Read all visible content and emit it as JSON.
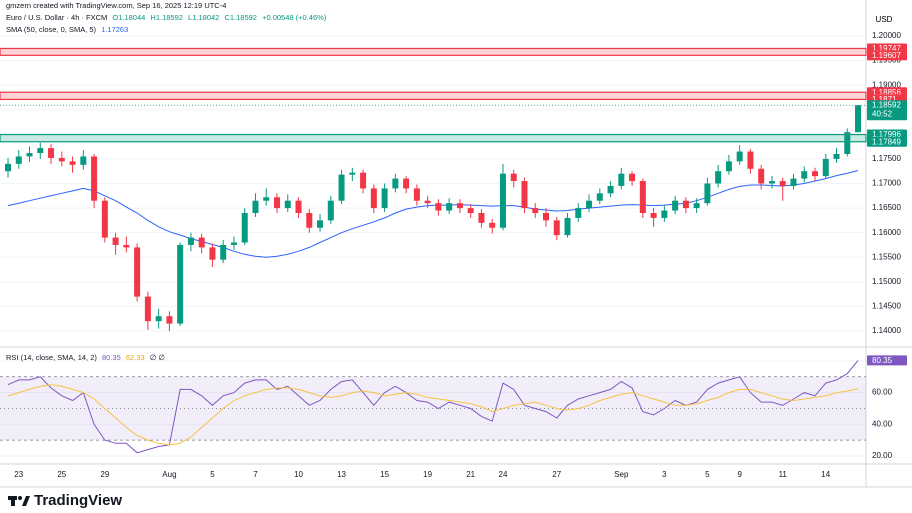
{
  "header": "gmzern created with TradingView.com, Sep 16, 2025 12:19 UTC-4",
  "footer": "TradingView",
  "chart_data": [
    {
      "type": "candlestick",
      "title": "Euro / U.S. Dollar · 4h · FXCM",
      "ohlc_text": [
        "O1.18044",
        "H1.18592",
        "L1.18042",
        "C1.18592",
        "+0.00548 (+0.46%)"
      ],
      "currency": "USD",
      "countdown": "40:52",
      "up_color": "#089981",
      "down_color": "#f23645",
      "categories": [
        null,
        "23",
        null,
        null,
        null,
        "25",
        null,
        null,
        null,
        "29",
        null,
        null,
        null,
        null,
        null,
        "Aug",
        null,
        null,
        null,
        "5",
        null,
        null,
        null,
        "7",
        null,
        null,
        null,
        "10",
        null,
        null,
        null,
        "13",
        null,
        null,
        null,
        "15",
        null,
        null,
        null,
        "19",
        null,
        null,
        null,
        "21",
        null,
        null,
        "24",
        null,
        null,
        null,
        null,
        "27",
        null,
        null,
        null,
        null,
        null,
        "Sep",
        null,
        null,
        null,
        "3",
        null,
        null,
        null,
        "5",
        null,
        null,
        "9",
        null,
        null,
        null,
        "11",
        null,
        null,
        null,
        "14",
        null,
        null,
        null
      ],
      "open": [
        1.1725,
        1.174,
        1.1755,
        1.1762,
        1.1772,
        1.1752,
        1.1745,
        1.1738,
        1.1755,
        1.1665,
        1.159,
        1.1575,
        1.157,
        1.147,
        1.142,
        1.143,
        1.1415,
        1.1575,
        1.159,
        1.157,
        1.1545,
        1.1575,
        1.158,
        1.164,
        1.1665,
        1.1672,
        1.165,
        1.1665,
        1.164,
        1.161,
        1.1625,
        1.1665,
        1.1718,
        1.1722,
        1.169,
        1.165,
        1.169,
        1.171,
        1.169,
        1.1665,
        1.166,
        1.1645,
        1.166,
        1.165,
        1.164,
        1.162,
        1.161,
        1.172,
        1.1705,
        1.165,
        1.164,
        1.1625,
        1.1595,
        1.163,
        1.165,
        1.1665,
        1.168,
        1.1695,
        1.172,
        1.1705,
        1.164,
        1.163,
        1.1645,
        1.1665,
        1.165,
        1.166,
        1.17,
        1.1725,
        1.1745,
        1.1765,
        1.173,
        1.17,
        1.1705,
        1.1695,
        1.171,
        1.1725,
        1.1715,
        1.175,
        1.176,
        1.18044
      ],
      "high": [
        1.1752,
        1.1768,
        1.1775,
        1.1783,
        1.178,
        1.1765,
        1.1755,
        1.1768,
        1.176,
        1.1672,
        1.16,
        1.1592,
        1.1578,
        1.148,
        1.1445,
        1.144,
        1.158,
        1.16,
        1.1598,
        1.1578,
        1.1585,
        1.1592,
        1.165,
        1.168,
        1.169,
        1.168,
        1.1678,
        1.1672,
        1.1648,
        1.1638,
        1.1675,
        1.1728,
        1.1732,
        1.1728,
        1.1698,
        1.17,
        1.172,
        1.1715,
        1.1698,
        1.1675,
        1.1668,
        1.167,
        1.1668,
        1.1658,
        1.1648,
        1.1628,
        1.174,
        1.1728,
        1.1712,
        1.166,
        1.165,
        1.1632,
        1.164,
        1.166,
        1.1678,
        1.169,
        1.1705,
        1.1732,
        1.1725,
        1.171,
        1.165,
        1.1655,
        1.1675,
        1.1672,
        1.167,
        1.1712,
        1.1738,
        1.1758,
        1.1778,
        1.177,
        1.1738,
        1.1715,
        1.1712,
        1.172,
        1.1735,
        1.1732,
        1.176,
        1.1772,
        1.1812,
        1.18592
      ],
      "low": [
        1.1712,
        1.173,
        1.1744,
        1.175,
        1.174,
        1.1735,
        1.1722,
        1.1728,
        1.165,
        1.158,
        1.1555,
        1.156,
        1.146,
        1.1402,
        1.1405,
        1.14,
        1.141,
        1.1562,
        1.1558,
        1.153,
        1.1538,
        1.1565,
        1.1575,
        1.1632,
        1.1655,
        1.164,
        1.1642,
        1.163,
        1.16,
        1.1602,
        1.1618,
        1.1658,
        1.1705,
        1.168,
        1.164,
        1.1642,
        1.1682,
        1.168,
        1.1655,
        1.165,
        1.1635,
        1.1638,
        1.164,
        1.163,
        1.161,
        1.1598,
        1.1605,
        1.1692,
        1.164,
        1.163,
        1.1612,
        1.1585,
        1.159,
        1.1622,
        1.1642,
        1.1658,
        1.1672,
        1.1688,
        1.1695,
        1.163,
        1.1612,
        1.1622,
        1.1638,
        1.164,
        1.164,
        1.1655,
        1.1692,
        1.1718,
        1.1738,
        1.172,
        1.1688,
        1.169,
        1.1665,
        1.1688,
        1.1702,
        1.1705,
        1.171,
        1.1742,
        1.1755,
        1.18042
      ],
      "close": [
        1.174,
        1.1755,
        1.1762,
        1.1772,
        1.1752,
        1.1745,
        1.1738,
        1.1755,
        1.1665,
        1.159,
        1.1575,
        1.157,
        1.147,
        1.142,
        1.143,
        1.1415,
        1.1575,
        1.159,
        1.157,
        1.1545,
        1.1575,
        1.158,
        1.164,
        1.1665,
        1.1672,
        1.165,
        1.1665,
        1.164,
        1.161,
        1.1625,
        1.1665,
        1.1718,
        1.1722,
        1.169,
        1.165,
        1.169,
        1.171,
        1.169,
        1.1665,
        1.166,
        1.1645,
        1.166,
        1.165,
        1.164,
        1.162,
        1.161,
        1.172,
        1.1705,
        1.165,
        1.164,
        1.1625,
        1.1595,
        1.163,
        1.165,
        1.1665,
        1.168,
        1.1695,
        1.172,
        1.1705,
        1.164,
        1.163,
        1.1645,
        1.1665,
        1.165,
        1.166,
        1.17,
        1.1725,
        1.1745,
        1.1765,
        1.173,
        1.17,
        1.1705,
        1.1695,
        1.171,
        1.1725,
        1.1715,
        1.175,
        1.176,
        1.18044,
        1.18592
      ],
      "series": [
        {
          "name": "SMA (50, close, 0, SMA, 5)",
          "color": "#2962ff",
          "values": [
            1.1655,
            1.166,
            1.1665,
            1.167,
            1.1675,
            1.168,
            1.1685,
            1.169,
            1.1685,
            1.1675,
            1.1665,
            1.1652,
            1.164,
            1.1625,
            1.1612,
            1.1602,
            1.1595,
            1.1588,
            1.1582,
            1.1576,
            1.157,
            1.1562,
            1.1556,
            1.1552,
            1.155,
            1.1552,
            1.1556,
            1.1562,
            1.157,
            1.158,
            1.159,
            1.16,
            1.1608,
            1.1615,
            1.1622,
            1.163,
            1.164,
            1.1648,
            1.1652,
            1.1655,
            1.1656,
            1.1656,
            1.1657,
            1.1656,
            1.1655,
            1.1654,
            1.1655,
            1.1655,
            1.1652,
            1.1648,
            1.1646,
            1.1644,
            1.1645,
            1.1648,
            1.165,
            1.1652,
            1.1654,
            1.1656,
            1.1657,
            1.1656,
            1.1655,
            1.1656,
            1.1658,
            1.166,
            1.1665,
            1.1672,
            1.168,
            1.1688,
            1.1694,
            1.1697,
            1.1697,
            1.1696,
            1.1695,
            1.1697,
            1.17,
            1.1705,
            1.171,
            1.1716,
            1.1721,
            1.17263
          ]
        }
      ],
      "zones": [
        {
          "high": 1.19747,
          "low": 1.19607,
          "color": "#f23645"
        },
        {
          "high": 1.18856,
          "low": 1.1871,
          "color": "#f23645"
        },
        {
          "high": 1.17996,
          "low": 1.17849,
          "color": "#089981"
        }
      ],
      "ylim": [
        1.13715,
        1.20529
      ],
      "yticks": [
        {
          "value": 1.2,
          "label": "1.20000"
        },
        {
          "value": 1.195,
          "label": "1.19500"
        },
        {
          "value": 1.19,
          "label": "1.19000"
        },
        {
          "value": 1.185,
          "label": "1.18500"
        },
        {
          "value": 1.18,
          "label": "1.18000"
        },
        {
          "value": 1.175,
          "label": "1.17500"
        },
        {
          "value": 1.17,
          "label": "1.17000"
        },
        {
          "value": 1.165,
          "label": "1.16500"
        },
        {
          "value": 1.16,
          "label": "1.16000"
        },
        {
          "value": 1.155,
          "label": "1.15500"
        },
        {
          "value": 1.15,
          "label": "1.15000"
        },
        {
          "value": 1.145,
          "label": "1.14500"
        },
        {
          "value": 1.14,
          "label": "1.14000"
        }
      ],
      "grid": true
    },
    {
      "type": "line",
      "title": "RSI (14, close, SMA, 14, 2)",
      "extra": "∅ ∅",
      "series": [
        {
          "color": "#7e57c2",
          "values": [
            65,
            68,
            68,
            70,
            63,
            58,
            55,
            60,
            40,
            30,
            28,
            28,
            22,
            24,
            26,
            27,
            62,
            62,
            58,
            52,
            58,
            60,
            66,
            68,
            68,
            62,
            64,
            58,
            52,
            55,
            62,
            67,
            68,
            60,
            52,
            60,
            64,
            60,
            55,
            54,
            50,
            54,
            52,
            50,
            45,
            42,
            66,
            62,
            52,
            50,
            48,
            44,
            52,
            56,
            58,
            60,
            62,
            67,
            63,
            48,
            46,
            50,
            55,
            52,
            54,
            62,
            66,
            68,
            70,
            60,
            54,
            54,
            52,
            56,
            60,
            58,
            66,
            68,
            72,
            80.35
          ]
        },
        {
          "color": "#f5c242",
          "values": [
            58,
            60,
            62,
            64,
            65,
            64,
            62,
            60,
            56,
            50,
            44,
            38,
            33,
            30,
            28,
            27,
            28,
            32,
            38,
            44,
            50,
            55,
            58,
            60,
            62,
            63,
            63,
            62,
            60,
            58,
            57,
            58,
            60,
            61,
            60,
            58,
            59,
            60,
            59,
            57,
            56,
            55,
            54,
            53,
            51,
            48,
            50,
            52,
            53,
            54,
            52,
            50,
            49,
            50,
            52,
            55,
            57,
            59,
            60,
            58,
            56,
            54,
            52,
            52,
            53,
            55,
            57,
            60,
            62,
            62,
            60,
            58,
            56,
            55,
            56,
            57,
            58,
            60,
            61,
            62.33
          ]
        }
      ],
      "bands": [
        70,
        50,
        30
      ],
      "band_color": "#7e57c2",
      "ylim": [
        16.2,
        86.9
      ],
      "yticks": [
        {
          "value": 80,
          "label": "80.00"
        },
        {
          "value": 60,
          "label": "60.00"
        },
        {
          "value": 40,
          "label": "40.00"
        },
        {
          "value": 20,
          "label": "20.00"
        }
      ],
      "grid": true
    }
  ]
}
